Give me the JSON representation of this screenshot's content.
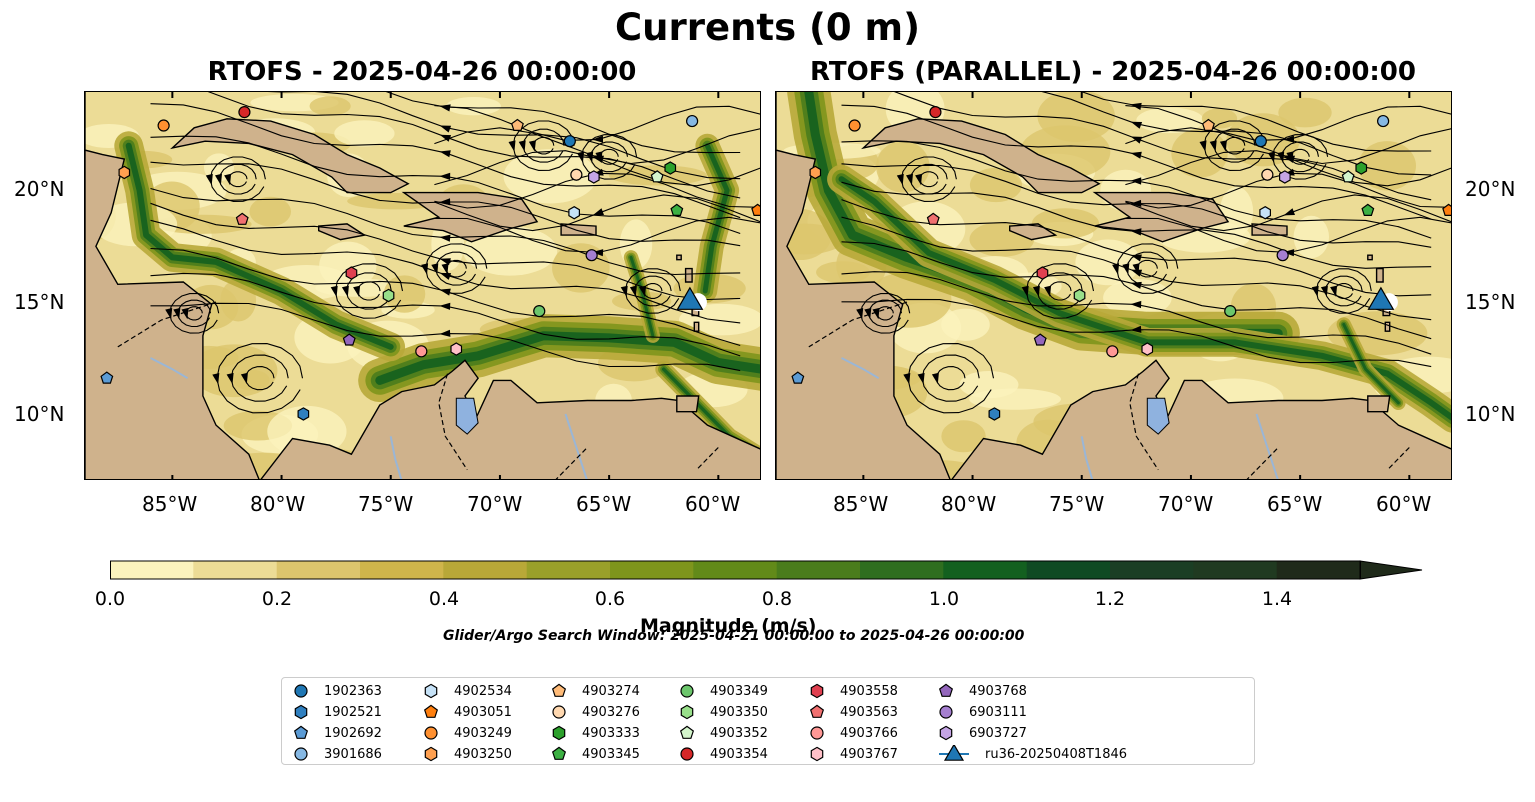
{
  "figure": {
    "suptitle": "Currents (0 m)",
    "panels": [
      {
        "title": "RTOFS - 2025-04-26 00:00:00"
      },
      {
        "title": "RTOFS (PARALLEL) - 2025-04-26 00:00:00"
      }
    ],
    "x_ticks": [
      "85°W",
      "80°W",
      "75°W",
      "70°W",
      "65°W",
      "60°W"
    ],
    "y_ticks": [
      "20°N",
      "15°N",
      "10°N"
    ],
    "colorbar": {
      "label": "Magnitude (m/s)",
      "ticks": [
        "0.0",
        "0.2",
        "0.4",
        "0.6",
        "0.8",
        "1.0",
        "1.2",
        "1.4"
      ],
      "range": [
        0,
        1.5
      ],
      "extend": "max",
      "colors": [
        "#fbf3bd",
        "#ecdc96",
        "#dcc56d",
        "#cfb54b",
        "#b8a838",
        "#9aa02a",
        "#7e951c",
        "#628a19",
        "#4a7c1c",
        "#2f6e1f",
        "#13601f",
        "#104a23",
        "#1b3e24",
        "#203a21",
        "#1f2a1a"
      ]
    },
    "window_note": "Glider/Argo Search Window: 2025-04-21 00:00:00 to 2025-04-26 00:00:00"
  },
  "map_colors": {
    "land": "#cfb28c",
    "ocean_base": "#d8c48a",
    "river": "#9ab6d6",
    "lake": "#8fb2df"
  },
  "legend": [
    {
      "label": "1902363",
      "marker": "circle",
      "color": "#1f77b4"
    },
    {
      "label": "1902521",
      "marker": "hexagon",
      "color": "#2f7fbf"
    },
    {
      "label": "1902692",
      "marker": "pentagon",
      "color": "#5b9bd5"
    },
    {
      "label": "3901686",
      "marker": "circle",
      "color": "#86b8e3"
    },
    {
      "label": "4902534",
      "marker": "hexagon",
      "color": "#c6e2f7"
    },
    {
      "label": "4903051",
      "marker": "pentagon",
      "color": "#ff7f0e"
    },
    {
      "label": "4903249",
      "marker": "circle",
      "color": "#ff9030"
    },
    {
      "label": "4903250",
      "marker": "hexagon",
      "color": "#ffa050"
    },
    {
      "label": "4903274",
      "marker": "pentagon",
      "color": "#ffbb78"
    },
    {
      "label": "4903276",
      "marker": "circle",
      "color": "#ffd8b0"
    },
    {
      "label": "4903333",
      "marker": "hexagon",
      "color": "#2ca02c"
    },
    {
      "label": "4903345",
      "marker": "pentagon",
      "color": "#3cb043"
    },
    {
      "label": "4903349",
      "marker": "circle",
      "color": "#6cc66c"
    },
    {
      "label": "4903350",
      "marker": "hexagon",
      "color": "#98df8a"
    },
    {
      "label": "4903352",
      "marker": "pentagon",
      "color": "#d4f5cc"
    },
    {
      "label": "4903354",
      "marker": "circle",
      "color": "#d62728"
    },
    {
      "label": "4903558",
      "marker": "hexagon",
      "color": "#e04050"
    },
    {
      "label": "4903563",
      "marker": "pentagon",
      "color": "#f07070"
    },
    {
      "label": "4903766",
      "marker": "circle",
      "color": "#ff9896"
    },
    {
      "label": "4903767",
      "marker": "hexagon",
      "color": "#ffc0c8"
    },
    {
      "label": "4903768",
      "marker": "pentagon",
      "color": "#9467bd"
    },
    {
      "label": "6903111",
      "marker": "circle",
      "color": "#a57fd0"
    },
    {
      "label": "6903727",
      "marker": "hexagon",
      "color": "#c5a5e5"
    },
    {
      "label": "ru36-20250408T1846",
      "marker": "triangle",
      "color": "#1f77b4"
    }
  ],
  "floats": [
    {
      "id": "1902363",
      "lon": -66.8,
      "lat": 22.2
    },
    {
      "id": "1902521",
      "lon": -79.0,
      "lat": 10.0
    },
    {
      "id": "1902692",
      "lon": -88.0,
      "lat": 11.6
    },
    {
      "id": "3901686",
      "lon": -61.2,
      "lat": 23.1
    },
    {
      "id": "4902534",
      "lon": -66.6,
      "lat": 19.0
    },
    {
      "id": "4903051",
      "lon": -58.2,
      "lat": 19.1
    },
    {
      "id": "4903249",
      "lon": -85.4,
      "lat": 22.9
    },
    {
      "id": "4903250",
      "lon": -87.2,
      "lat": 20.8
    },
    {
      "id": "4903274",
      "lon": -69.2,
      "lat": 22.9
    },
    {
      "id": "4903276",
      "lon": -66.5,
      "lat": 20.7
    },
    {
      "id": "4903333",
      "lon": -62.2,
      "lat": 21.0
    },
    {
      "id": "4903345",
      "lon": -61.9,
      "lat": 19.1
    },
    {
      "id": "4903349",
      "lon": -68.2,
      "lat": 14.6
    },
    {
      "id": "4903350",
      "lon": -75.1,
      "lat": 15.3
    },
    {
      "id": "4903352",
      "lon": -62.8,
      "lat": 20.6
    },
    {
      "id": "4903354",
      "lon": -81.7,
      "lat": 23.5
    },
    {
      "id": "4903558",
      "lon": -76.8,
      "lat": 16.3
    },
    {
      "id": "4903563",
      "lon": -81.8,
      "lat": 18.7
    },
    {
      "id": "4903766",
      "lon": -73.6,
      "lat": 12.8
    },
    {
      "id": "4903767",
      "lon": -72.0,
      "lat": 12.9
    },
    {
      "id": "4903768",
      "lon": -76.9,
      "lat": 13.3
    },
    {
      "id": "6903111",
      "lon": -65.8,
      "lat": 17.1
    },
    {
      "id": "6903727",
      "lon": -65.7,
      "lat": 20.6
    },
    {
      "id": "ru36-20250408T1846",
      "lon": -61.3,
      "lat": 15.0
    }
  ]
}
